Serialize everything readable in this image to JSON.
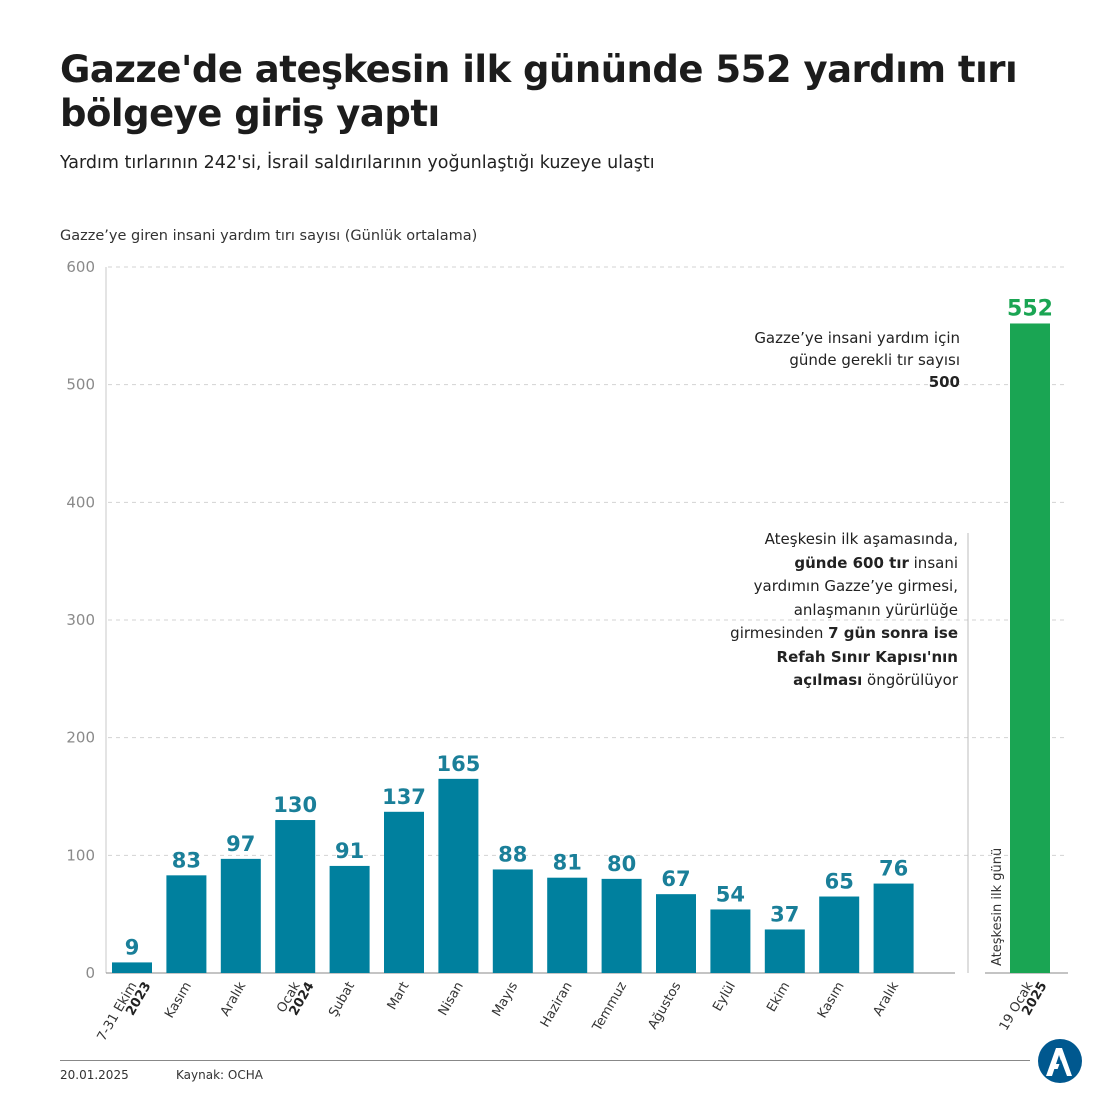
{
  "header": {
    "title_line1": "Gazze'de ateşkesin ilk gününde 552 yardım tırı",
    "title_line2": "bölgeye giriş yaptı",
    "subtitle": "Yardım tırlarının 242'si, İsrail saldırılarının yoğunlaştığı kuzeye ulaştı"
  },
  "colors": {
    "bar": "#00809e",
    "value_label": "#1a7f99",
    "highlight_bar": "#1aa553",
    "highlight_label": "#1aa553",
    "grid": "#d3d3d3",
    "axis_text": "#8a8a8a"
  },
  "chart_data": {
    "type": "bar",
    "ylabel": "Gazze’ye giren insani yardım tırı sayısı (Günlük ortalama)",
    "ylim": [
      0,
      600
    ],
    "yticks": [
      0,
      100,
      200,
      300,
      400,
      500,
      600
    ],
    "grid": true,
    "categories": [
      {
        "label": "7-31 Ekim",
        "year": "2023"
      },
      {
        "label": "Kasım",
        "year": ""
      },
      {
        "label": "Aralık",
        "year": ""
      },
      {
        "label": "Ocak",
        "year": "2024"
      },
      {
        "label": "Şubat",
        "year": ""
      },
      {
        "label": "Mart",
        "year": ""
      },
      {
        "label": "Nisan",
        "year": ""
      },
      {
        "label": "Mayıs",
        "year": ""
      },
      {
        "label": "Haziran",
        "year": ""
      },
      {
        "label": "Temmuz",
        "year": ""
      },
      {
        "label": "Ağustos",
        "year": ""
      },
      {
        "label": "Eylül",
        "year": ""
      },
      {
        "label": "Ekim",
        "year": ""
      },
      {
        "label": "Kasım",
        "year": ""
      },
      {
        "label": "Aralık",
        "year": ""
      }
    ],
    "values": [
      9,
      83,
      97,
      130,
      91,
      137,
      165,
      88,
      81,
      80,
      67,
      54,
      37,
      65,
      76
    ],
    "highlight": {
      "label": "19 Ocak",
      "year": "2025",
      "value": 552
    }
  },
  "annotations": {
    "required_line1": "Gazze’ye insani yardım için",
    "required_line2": "günde gerekli tır sayısı",
    "required_value": "500",
    "ceasefire_divider_label": "Ateşkesin ilk günü",
    "c_l1": "Ateşkesin ilk aşamasında,",
    "c_l2_bold": "günde 600 tır",
    "c_l2_rest": " insani",
    "c_l3": "yardımın Gazze’ye girmesi,",
    "c_l4": "anlaşmanın yürürlüğe",
    "c_l5_pre": "girmesinden ",
    "c_l5_bold": "7 gün sonra ise",
    "c_l6_bold": "Refah Sınır Kapısı'nın",
    "c_l7_bold": "açılması",
    "c_l7_rest": " öngörülüyor"
  },
  "footer": {
    "date": "20.01.2025",
    "source": "Kaynak: OCHA"
  },
  "logo": {
    "icon": "aa-logo-icon",
    "color": "#00588f"
  }
}
